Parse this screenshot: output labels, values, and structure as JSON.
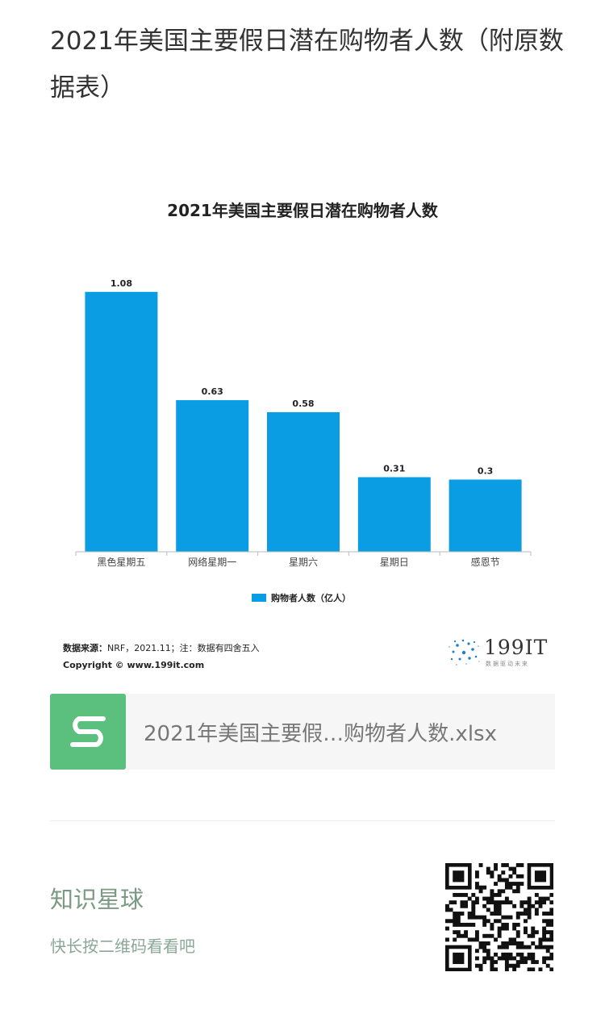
{
  "article": {
    "title": "2021年美国主要假日潜在购物者人数（附原数据表）"
  },
  "chart_data": {
    "type": "bar",
    "title": "2021年美国主要假日潜在购物者人数",
    "categories": [
      "黑色星期五",
      "网络星期一",
      "星期六",
      "星期日",
      "感恩节"
    ],
    "series": [
      {
        "name": "购物者人数（亿人）",
        "values": [
          1.08,
          0.63,
          0.58,
          0.31,
          0.3
        ],
        "labels": [
          "1.08",
          "0.63",
          "0.58",
          "0.31",
          "0.3"
        ]
      }
    ],
    "ylim": [
      0,
      1.2
    ],
    "grid": false,
    "legend": "bottom",
    "bar_color": "#0a9de3"
  },
  "source": {
    "label": "数据来源：",
    "text": "NRF，2021.11；注：数据有四舍五入",
    "copyright": "Copyright ©  www.199it.com"
  },
  "logo": {
    "text": "199IT",
    "sub": "数据驱动未来"
  },
  "attachment": {
    "filename": "2021年美国主要假…购物者人数.xlsx",
    "icon": "spreadsheet-s-icon",
    "color": "#5bbf7d"
  },
  "promo": {
    "title": "知识星球",
    "subtitle": "快长按二维码看看吧",
    "qr_icon": "qr-code-icon"
  }
}
